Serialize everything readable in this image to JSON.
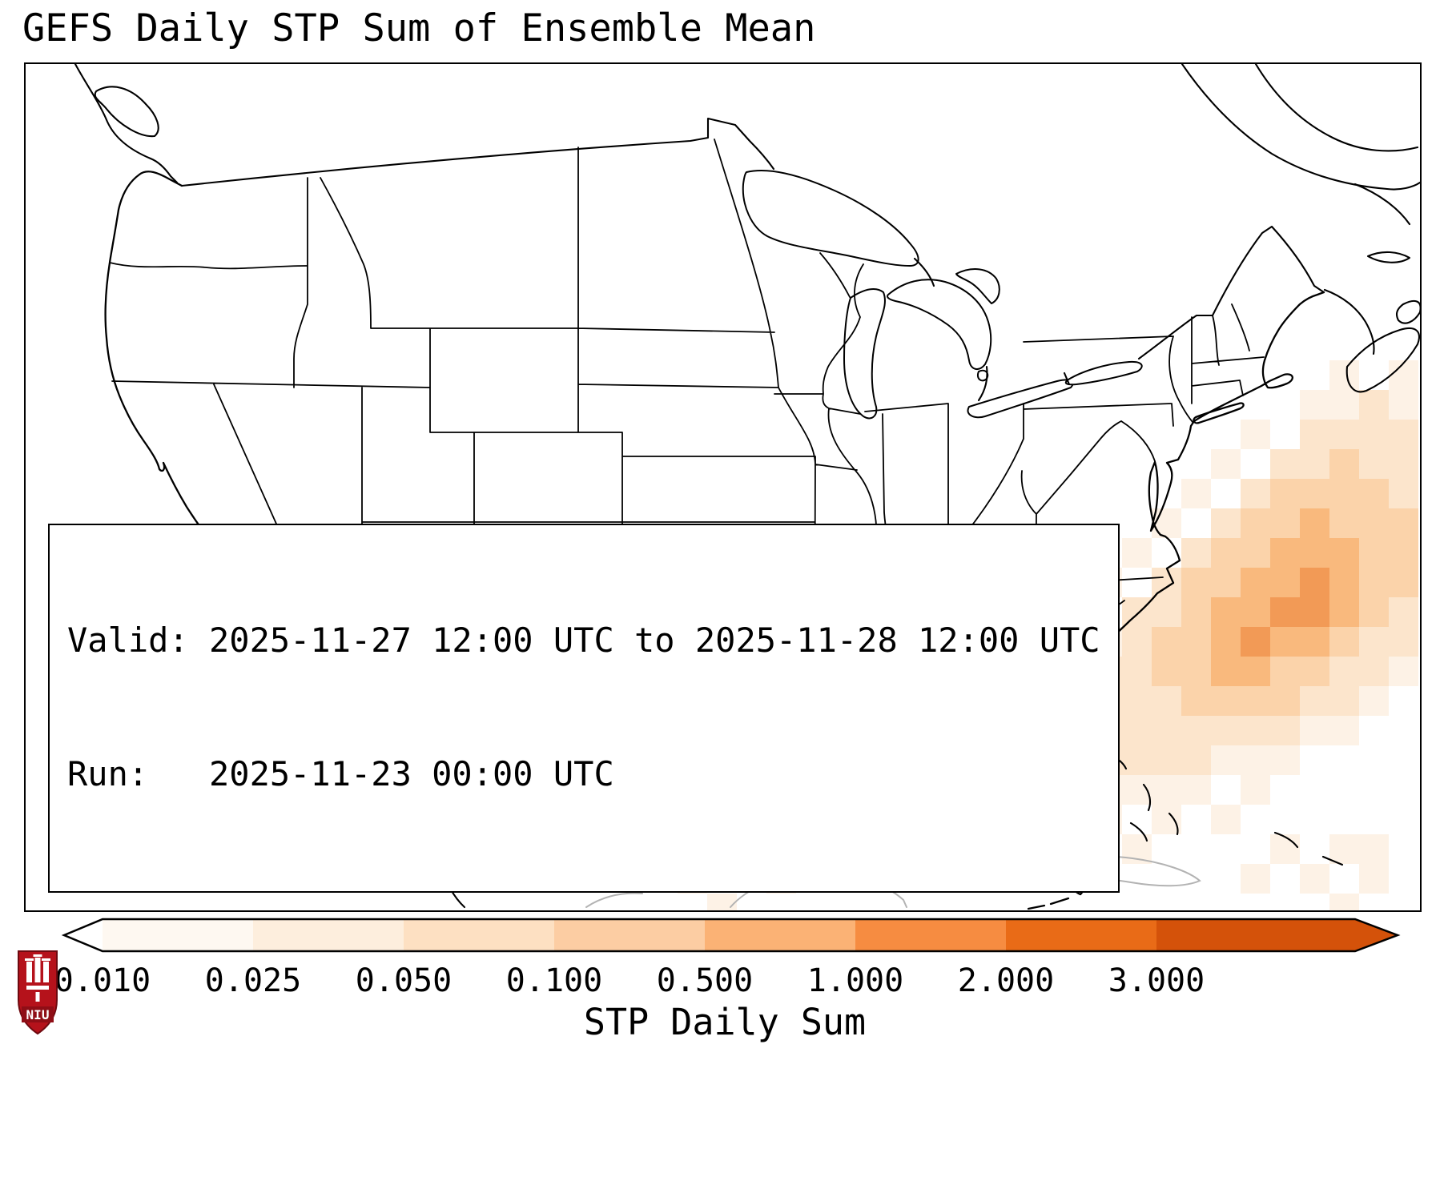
{
  "title": "GEFS Daily STP Sum of Ensemble Mean",
  "info_box": {
    "valid_label": "Valid: 2025-11-27 12:00 UTC to 2025-11-28 12:00 UTC",
    "run_label": "Run:   2025-11-23 00:00 UTC"
  },
  "colorbar": {
    "label": "STP Daily Sum",
    "tick_labels": [
      "0.010",
      "0.025",
      "0.050",
      "0.100",
      "0.500",
      "1.000",
      "2.000",
      "3.000"
    ],
    "under_color": "#ffffff",
    "segment_colors": [
      "#fef8f1",
      "#fdeedd",
      "#fde0c2",
      "#fccda3",
      "#fbb275",
      "#f68c41",
      "#e96b17"
    ],
    "over_color": "#d4520a",
    "outline_color": "#000000"
  },
  "logo": {
    "text": "NIU",
    "primary_color": "#b5121b",
    "band_color": "#8f0e16"
  },
  "chart_data": {
    "type": "heatmap",
    "title": "GEFS Daily STP Sum of Ensemble Mean",
    "variable": "STP Daily Sum",
    "valid_period": "2025-11-27 12:00 UTC to 2025-11-28 12:00 UTC",
    "model_run": "2025-11-23 00:00 UTC",
    "region_note": "Shaded STP values lie over the western Atlantic off the US Southeast coast, with faint cells in the Gulf of Mexico; CONUS land is unshaded",
    "colorbar_boundaries": [
      0.01,
      0.025,
      0.05,
      0.1,
      0.5,
      1.0,
      2.0,
      3.0
    ],
    "colorbar_extend": "both",
    "palette": [
      "#fdf2e6",
      "#fce5cc",
      "#fbd3aa",
      "#f9b97d",
      "#f29a56"
    ],
    "level_stp_approx": [
      0.02,
      0.04,
      0.08,
      0.3,
      0.8
    ],
    "cell_size": 37,
    "cells": [
      [
        44,
        10,
        1
      ],
      [
        46,
        10,
        1
      ],
      [
        43,
        11,
        1
      ],
      [
        44,
        11,
        1
      ],
      [
        45,
        11,
        2
      ],
      [
        46,
        11,
        1
      ],
      [
        41,
        12,
        1
      ],
      [
        43,
        12,
        2
      ],
      [
        44,
        12,
        2
      ],
      [
        45,
        12,
        2
      ],
      [
        46,
        12,
        2
      ],
      [
        40,
        13,
        1
      ],
      [
        42,
        13,
        2
      ],
      [
        43,
        13,
        2
      ],
      [
        44,
        13,
        3
      ],
      [
        45,
        13,
        2
      ],
      [
        46,
        13,
        2
      ],
      [
        39,
        14,
        1
      ],
      [
        41,
        14,
        2
      ],
      [
        42,
        14,
        3
      ],
      [
        43,
        14,
        3
      ],
      [
        44,
        14,
        3
      ],
      [
        45,
        14,
        3
      ],
      [
        46,
        14,
        2
      ],
      [
        38,
        15,
        1
      ],
      [
        40,
        15,
        2
      ],
      [
        41,
        15,
        3
      ],
      [
        42,
        15,
        3
      ],
      [
        43,
        15,
        4
      ],
      [
        44,
        15,
        3
      ],
      [
        45,
        15,
        3
      ],
      [
        46,
        15,
        3
      ],
      [
        37,
        16,
        1
      ],
      [
        39,
        16,
        2
      ],
      [
        40,
        16,
        3
      ],
      [
        41,
        16,
        3
      ],
      [
        42,
        16,
        4
      ],
      [
        43,
        16,
        4
      ],
      [
        44,
        16,
        4
      ],
      [
        45,
        16,
        3
      ],
      [
        46,
        16,
        3
      ],
      [
        36,
        17,
        1
      ],
      [
        38,
        17,
        2
      ],
      [
        39,
        17,
        3
      ],
      [
        40,
        17,
        3
      ],
      [
        41,
        17,
        4
      ],
      [
        42,
        17,
        4
      ],
      [
        43,
        17,
        5
      ],
      [
        44,
        17,
        4
      ],
      [
        45,
        17,
        3
      ],
      [
        46,
        17,
        3
      ],
      [
        35,
        18,
        1
      ],
      [
        37,
        18,
        2
      ],
      [
        38,
        18,
        2
      ],
      [
        39,
        18,
        3
      ],
      [
        40,
        18,
        4
      ],
      [
        41,
        18,
        4
      ],
      [
        42,
        18,
        5
      ],
      [
        43,
        18,
        5
      ],
      [
        44,
        18,
        4
      ],
      [
        45,
        18,
        3
      ],
      [
        46,
        18,
        2
      ],
      [
        34,
        19,
        1
      ],
      [
        36,
        19,
        1
      ],
      [
        37,
        19,
        2
      ],
      [
        38,
        19,
        3
      ],
      [
        39,
        19,
        3
      ],
      [
        40,
        19,
        4
      ],
      [
        41,
        19,
        5
      ],
      [
        42,
        19,
        4
      ],
      [
        43,
        19,
        4
      ],
      [
        44,
        19,
        3
      ],
      [
        45,
        19,
        2
      ],
      [
        46,
        19,
        2
      ],
      [
        35,
        20,
        1
      ],
      [
        36,
        20,
        2
      ],
      [
        37,
        20,
        2
      ],
      [
        38,
        20,
        3
      ],
      [
        39,
        20,
        3
      ],
      [
        40,
        20,
        4
      ],
      [
        41,
        20,
        4
      ],
      [
        42,
        20,
        3
      ],
      [
        43,
        20,
        3
      ],
      [
        44,
        20,
        2
      ],
      [
        45,
        20,
        2
      ],
      [
        46,
        20,
        1
      ],
      [
        34,
        21,
        1
      ],
      [
        35,
        21,
        2
      ],
      [
        36,
        21,
        2
      ],
      [
        37,
        21,
        2
      ],
      [
        38,
        21,
        2
      ],
      [
        39,
        21,
        3
      ],
      [
        40,
        21,
        3
      ],
      [
        41,
        21,
        3
      ],
      [
        42,
        21,
        3
      ],
      [
        43,
        21,
        2
      ],
      [
        44,
        21,
        2
      ],
      [
        45,
        21,
        1
      ],
      [
        34,
        22,
        1
      ],
      [
        35,
        22,
        2
      ],
      [
        36,
        22,
        2
      ],
      [
        37,
        22,
        2
      ],
      [
        38,
        22,
        2
      ],
      [
        39,
        22,
        2
      ],
      [
        40,
        22,
        2
      ],
      [
        41,
        22,
        2
      ],
      [
        42,
        22,
        2
      ],
      [
        43,
        22,
        1
      ],
      [
        44,
        22,
        1
      ],
      [
        32,
        23,
        1
      ],
      [
        33,
        23,
        1
      ],
      [
        34,
        23,
        1
      ],
      [
        35,
        23,
        1
      ],
      [
        36,
        23,
        2
      ],
      [
        37,
        23,
        2
      ],
      [
        38,
        23,
        2
      ],
      [
        39,
        23,
        2
      ],
      [
        40,
        23,
        1
      ],
      [
        41,
        23,
        1
      ],
      [
        42,
        23,
        1
      ],
      [
        21,
        24,
        1
      ],
      [
        28,
        24,
        1
      ],
      [
        30,
        24,
        1
      ],
      [
        32,
        24,
        1
      ],
      [
        33,
        24,
        1
      ],
      [
        34,
        24,
        1
      ],
      [
        35,
        24,
        1
      ],
      [
        36,
        24,
        1
      ],
      [
        37,
        24,
        1
      ],
      [
        38,
        24,
        1
      ],
      [
        39,
        24,
        1
      ],
      [
        41,
        24,
        1
      ],
      [
        20,
        25,
        1
      ],
      [
        22,
        25,
        1
      ],
      [
        27,
        25,
        1
      ],
      [
        29,
        25,
        1
      ],
      [
        31,
        25,
        1
      ],
      [
        33,
        25,
        1
      ],
      [
        34,
        25,
        1
      ],
      [
        36,
        25,
        1
      ],
      [
        38,
        25,
        1
      ],
      [
        40,
        25,
        1
      ],
      [
        21,
        26,
        1
      ],
      [
        23,
        26,
        1
      ],
      [
        30,
        26,
        1
      ],
      [
        32,
        26,
        1
      ],
      [
        34,
        26,
        1
      ],
      [
        37,
        26,
        1
      ],
      [
        42,
        26,
        1
      ],
      [
        44,
        26,
        1
      ],
      [
        45,
        26,
        1
      ],
      [
        22,
        27,
        1
      ],
      [
        25,
        27,
        1
      ],
      [
        41,
        27,
        1
      ],
      [
        43,
        27,
        1
      ],
      [
        45,
        27,
        1
      ],
      [
        23,
        28,
        1
      ],
      [
        44,
        28,
        1
      ]
    ]
  }
}
